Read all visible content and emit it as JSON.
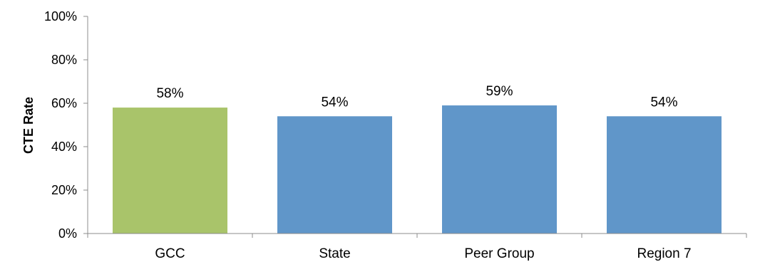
{
  "chart_data": {
    "type": "bar",
    "categories": [
      "GCC",
      "State",
      "Peer Group",
      "Region 7"
    ],
    "values": [
      58,
      54,
      59,
      54
    ],
    "data_labels": [
      "58%",
      "54%",
      "59%",
      "54%"
    ],
    "bar_colors": [
      "#a9c46a",
      "#6096c9",
      "#6096c9",
      "#6096c9"
    ],
    "ylabel": "CTE Rate",
    "xlabel": "",
    "ylim": [
      0,
      100
    ],
    "yticks": [
      0,
      20,
      40,
      60,
      80,
      100
    ],
    "ytick_labels": [
      "0%",
      "20%",
      "40%",
      "60%",
      "80%",
      "100%"
    ],
    "grid": false,
    "legend": "none"
  }
}
